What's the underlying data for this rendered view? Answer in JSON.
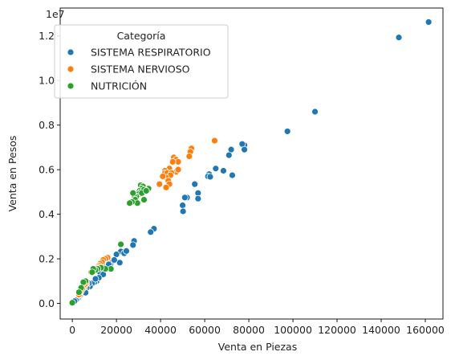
{
  "chart_data": {
    "type": "scatter",
    "xlabel": "Venta en Piezas",
    "ylabel": "Venta en Pesos",
    "y_offset_label": "1e7",
    "xlim": [
      -5500,
      168000
    ],
    "ylim": [
      -700000,
      13250000
    ],
    "x_ticks": [
      0,
      20000,
      40000,
      60000,
      80000,
      100000,
      120000,
      140000,
      160000
    ],
    "x_tick_labels": [
      "0",
      "20000",
      "40000",
      "60000",
      "80000",
      "100000",
      "120000",
      "140000",
      "160000"
    ],
    "y_ticks": [
      0,
      2000000,
      4000000,
      6000000,
      8000000,
      10000000,
      12000000
    ],
    "y_tick_labels": [
      "0.0",
      "0.2",
      "0.4",
      "0.6",
      "0.8",
      "1.0",
      "1.2"
    ],
    "grid": false,
    "legend": {
      "title": "Categoría",
      "placement": "top-left"
    },
    "series": [
      {
        "name": "SISTEMA RESPIRATORIO",
        "color": "#1f77b4",
        "points": [
          [
            161500,
            12620000
          ],
          [
            148000,
            11930000
          ],
          [
            110000,
            8600000
          ],
          [
            97500,
            7720000
          ],
          [
            78000,
            7100000
          ],
          [
            77000,
            7150000
          ],
          [
            78000,
            6900000
          ],
          [
            72000,
            6900000
          ],
          [
            71000,
            6650000
          ],
          [
            68500,
            5950000
          ],
          [
            65000,
            6050000
          ],
          [
            72500,
            5750000
          ],
          [
            62000,
            5800000
          ],
          [
            61500,
            5700000
          ],
          [
            62500,
            5680000
          ],
          [
            55500,
            5350000
          ],
          [
            52000,
            4750000
          ],
          [
            51000,
            4750000
          ],
          [
            57000,
            4950000
          ],
          [
            57000,
            4700000
          ],
          [
            50000,
            4400000
          ],
          [
            50200,
            4130000
          ],
          [
            37000,
            3350000
          ],
          [
            35500,
            3200000
          ],
          [
            28000,
            2800000
          ],
          [
            27500,
            2620000
          ],
          [
            22000,
            2330000
          ],
          [
            23500,
            2250000
          ],
          [
            24500,
            2350000
          ],
          [
            20000,
            2200000
          ],
          [
            21500,
            1830000
          ],
          [
            17500,
            1800000
          ],
          [
            16000,
            1650000
          ],
          [
            15500,
            1560000
          ],
          [
            13500,
            1720000
          ],
          [
            12500,
            1400000
          ],
          [
            11000,
            1000000
          ],
          [
            10000,
            950000
          ],
          [
            9000,
            900000
          ],
          [
            8000,
            760000
          ],
          [
            7500,
            900000
          ],
          [
            6500,
            700000
          ],
          [
            5500,
            650000
          ],
          [
            5000,
            520000
          ],
          [
            4500,
            450000
          ],
          [
            4000,
            420000
          ],
          [
            3500,
            350000
          ],
          [
            3000,
            300000
          ],
          [
            2500,
            220000
          ],
          [
            2000,
            180000
          ],
          [
            1500,
            140000
          ],
          [
            1000,
            100000
          ],
          [
            6000,
            480000
          ],
          [
            3000,
            380000
          ],
          [
            18500,
            1900000
          ],
          [
            19000,
            1950000
          ],
          [
            14000,
            1300000
          ],
          [
            12000,
            1150000
          ],
          [
            10500,
            1100000
          ],
          [
            16500,
            1750000
          ]
        ]
      },
      {
        "name": "SISTEMA NERVIOSO",
        "color": "#ff7f0e",
        "points": [
          [
            64500,
            7300000
          ],
          [
            54000,
            6950000
          ],
          [
            53500,
            6800000
          ],
          [
            53000,
            6600000
          ],
          [
            46000,
            6550000
          ],
          [
            47000,
            6450000
          ],
          [
            48000,
            6350000
          ],
          [
            45500,
            6350000
          ],
          [
            44000,
            6050000
          ],
          [
            47000,
            5900000
          ],
          [
            48000,
            6000000
          ],
          [
            42000,
            5950000
          ],
          [
            42000,
            5850000
          ],
          [
            43000,
            5850000
          ],
          [
            45000,
            5850000
          ],
          [
            44500,
            5750000
          ],
          [
            42500,
            5650000
          ],
          [
            43500,
            5500000
          ],
          [
            44000,
            5350000
          ],
          [
            42500,
            5200000
          ],
          [
            39500,
            5350000
          ],
          [
            41000,
            5700000
          ],
          [
            16000,
            2050000
          ],
          [
            15000,
            2000000
          ],
          [
            14000,
            1950000
          ],
          [
            13500,
            1850000
          ],
          [
            12500,
            1780000
          ],
          [
            12000,
            1700000
          ],
          [
            11500,
            1650000
          ],
          [
            11000,
            1600000
          ],
          [
            10500,
            1550000
          ],
          [
            10000,
            1500000
          ],
          [
            9000,
            1480000
          ],
          [
            8500,
            1400000
          ],
          [
            6500,
            900000
          ],
          [
            6000,
            850000
          ],
          [
            5500,
            800000
          ],
          [
            5000,
            700000
          ],
          [
            4500,
            650000
          ],
          [
            4000,
            550000
          ],
          [
            3500,
            500000
          ],
          [
            3000,
            400000
          ]
        ]
      },
      {
        "name": "NUTRICIÓN",
        "color": "#2ca02c",
        "points": [
          [
            34500,
            5150000
          ],
          [
            33000,
            5100000
          ],
          [
            31000,
            5300000
          ],
          [
            32000,
            5250000
          ],
          [
            31500,
            5150000
          ],
          [
            30500,
            5050000
          ],
          [
            31000,
            5000000
          ],
          [
            32500,
            5100000
          ],
          [
            30000,
            4900000
          ],
          [
            29000,
            4800000
          ],
          [
            28000,
            4850000
          ],
          [
            27500,
            4950000
          ],
          [
            28500,
            4650000
          ],
          [
            29500,
            4500000
          ],
          [
            27000,
            4550000
          ],
          [
            26000,
            4500000
          ],
          [
            32500,
            4650000
          ],
          [
            31500,
            4950000
          ],
          [
            33500,
            5050000
          ],
          [
            22000,
            2650000
          ],
          [
            17500,
            1550000
          ],
          [
            15000,
            1550000
          ],
          [
            13000,
            1600000
          ],
          [
            11500,
            1550000
          ],
          [
            10500,
            1500000
          ],
          [
            9500,
            1550000
          ],
          [
            9000,
            1400000
          ],
          [
            6000,
            1000000
          ],
          [
            5000,
            950000
          ],
          [
            4000,
            700000
          ],
          [
            3000,
            500000
          ],
          [
            0,
            30000
          ]
        ]
      }
    ]
  }
}
